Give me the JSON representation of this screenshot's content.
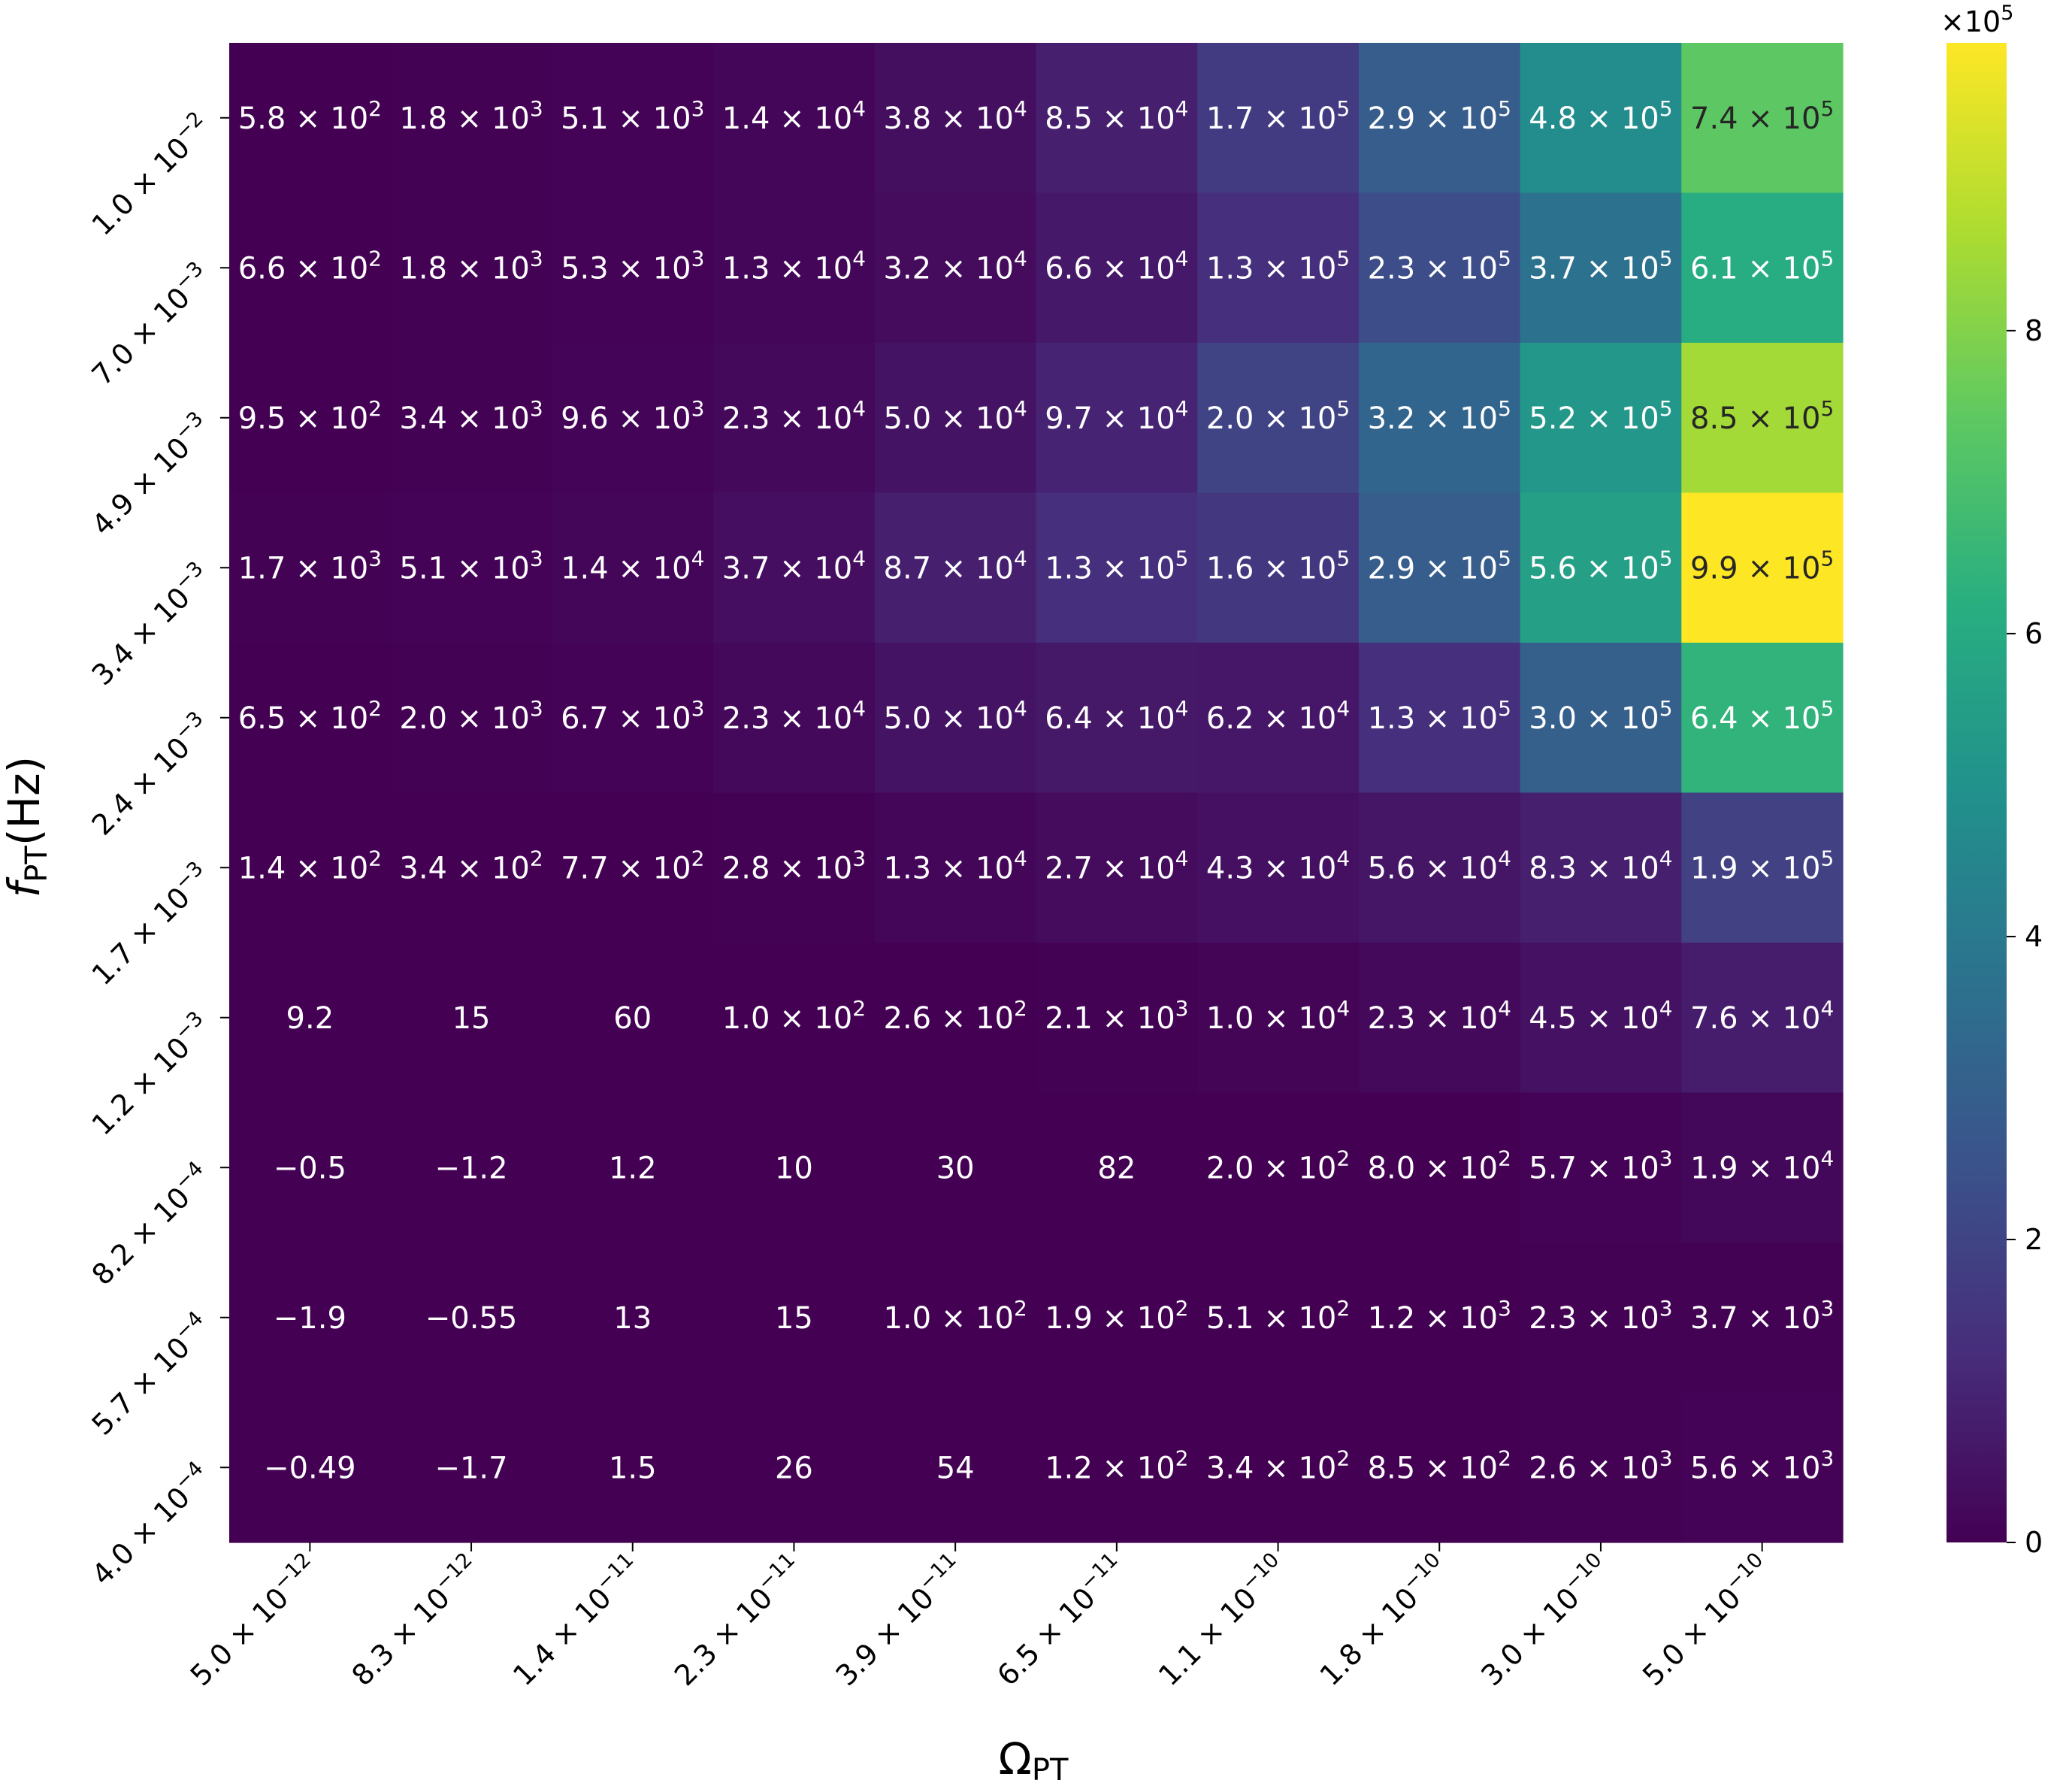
{
  "chart_data": {
    "type": "heatmap",
    "xlabel": "Ω",
    "xlabel_sub": "PT",
    "ylabel": "f",
    "ylabel_sub": "PT",
    "ylabel_suffix": "(Hz)",
    "x_ticks": [
      {
        "m": "5.0",
        "e": "−12"
      },
      {
        "m": "8.3",
        "e": "−12"
      },
      {
        "m": "1.4",
        "e": "−11"
      },
      {
        "m": "2.3",
        "e": "−11"
      },
      {
        "m": "3.9",
        "e": "−11"
      },
      {
        "m": "6.5",
        "e": "−11"
      },
      {
        "m": "1.1",
        "e": "−10"
      },
      {
        "m": "1.8",
        "e": "−10"
      },
      {
        "m": "3.0",
        "e": "−10"
      },
      {
        "m": "5.0",
        "e": "−10"
      }
    ],
    "y_ticks": [
      {
        "m": "1.0",
        "e": "−2"
      },
      {
        "m": "7.0",
        "e": "−3"
      },
      {
        "m": "4.9",
        "e": "−3"
      },
      {
        "m": "3.4",
        "e": "−3"
      },
      {
        "m": "2.4",
        "e": "−3"
      },
      {
        "m": "1.7",
        "e": "−3"
      },
      {
        "m": "1.2",
        "e": "−3"
      },
      {
        "m": "8.2",
        "e": "−4"
      },
      {
        "m": "5.7",
        "e": "−4"
      },
      {
        "m": "4.0",
        "e": "−4"
      }
    ],
    "values": [
      [
        580,
        1800,
        5100,
        14000,
        38000,
        85000,
        170000,
        290000,
        480000,
        740000
      ],
      [
        660,
        1800,
        5300,
        13000,
        32000,
        66000,
        130000,
        230000,
        370000,
        610000
      ],
      [
        950,
        3400,
        9600,
        23000,
        50000,
        97000,
        200000,
        320000,
        520000,
        850000
      ],
      [
        1700,
        5100,
        14000,
        37000,
        87000,
        130000,
        160000,
        290000,
        560000,
        990000
      ],
      [
        650,
        2000,
        6700,
        23000,
        50000,
        64000,
        62000,
        130000,
        300000,
        640000
      ],
      [
        140,
        340,
        770,
        2800,
        13000,
        27000,
        43000,
        56000,
        83000,
        190000
      ],
      [
        9.2,
        15,
        60,
        100,
        260,
        2100,
        10000,
        23000,
        45000,
        76000
      ],
      [
        -0.5,
        -1.2,
        1.2,
        10,
        30,
        82,
        200,
        800,
        5700,
        19000
      ],
      [
        -1.9,
        -0.55,
        13,
        15,
        100,
        190,
        510,
        1200,
        2300,
        3700
      ],
      [
        -0.49,
        -1.7,
        1.5,
        26,
        54,
        120,
        340,
        850,
        2600,
        5600
      ]
    ],
    "labels": [
      [
        {
          "m": "5.8",
          "e": "2"
        },
        {
          "m": "1.8",
          "e": "3"
        },
        {
          "m": "5.1",
          "e": "3"
        },
        {
          "m": "1.4",
          "e": "4"
        },
        {
          "m": "3.8",
          "e": "4"
        },
        {
          "m": "8.5",
          "e": "4"
        },
        {
          "m": "1.7",
          "e": "5"
        },
        {
          "m": "2.9",
          "e": "5"
        },
        {
          "m": "4.8",
          "e": "5"
        },
        {
          "m": "7.4",
          "e": "5"
        }
      ],
      [
        {
          "m": "6.6",
          "e": "2"
        },
        {
          "m": "1.8",
          "e": "3"
        },
        {
          "m": "5.3",
          "e": "3"
        },
        {
          "m": "1.3",
          "e": "4"
        },
        {
          "m": "3.2",
          "e": "4"
        },
        {
          "m": "6.6",
          "e": "4"
        },
        {
          "m": "1.3",
          "e": "5"
        },
        {
          "m": "2.3",
          "e": "5"
        },
        {
          "m": "3.7",
          "e": "5"
        },
        {
          "m": "6.1",
          "e": "5"
        }
      ],
      [
        {
          "m": "9.5",
          "e": "2"
        },
        {
          "m": "3.4",
          "e": "3"
        },
        {
          "m": "9.6",
          "e": "3"
        },
        {
          "m": "2.3",
          "e": "4"
        },
        {
          "m": "5.0",
          "e": "4"
        },
        {
          "m": "9.7",
          "e": "4"
        },
        {
          "m": "2.0",
          "e": "5"
        },
        {
          "m": "3.2",
          "e": "5"
        },
        {
          "m": "5.2",
          "e": "5"
        },
        {
          "m": "8.5",
          "e": "5"
        }
      ],
      [
        {
          "m": "1.7",
          "e": "3"
        },
        {
          "m": "5.1",
          "e": "3"
        },
        {
          "m": "1.4",
          "e": "4"
        },
        {
          "m": "3.7",
          "e": "4"
        },
        {
          "m": "8.7",
          "e": "4"
        },
        {
          "m": "1.3",
          "e": "5"
        },
        {
          "m": "1.6",
          "e": "5"
        },
        {
          "m": "2.9",
          "e": "5"
        },
        {
          "m": "5.6",
          "e": "5"
        },
        {
          "m": "9.9",
          "e": "5"
        }
      ],
      [
        {
          "m": "6.5",
          "e": "2"
        },
        {
          "m": "2.0",
          "e": "3"
        },
        {
          "m": "6.7",
          "e": "3"
        },
        {
          "m": "2.3",
          "e": "4"
        },
        {
          "m": "5.0",
          "e": "4"
        },
        {
          "m": "6.4",
          "e": "4"
        },
        {
          "m": "6.2",
          "e": "4"
        },
        {
          "m": "1.3",
          "e": "5"
        },
        {
          "m": "3.0",
          "e": "5"
        },
        {
          "m": "6.4",
          "e": "5"
        }
      ],
      [
        {
          "m": "1.4",
          "e": "2"
        },
        {
          "m": "3.4",
          "e": "2"
        },
        {
          "m": "7.7",
          "e": "2"
        },
        {
          "m": "2.8",
          "e": "3"
        },
        {
          "m": "1.3",
          "e": "4"
        },
        {
          "m": "2.7",
          "e": "4"
        },
        {
          "m": "4.3",
          "e": "4"
        },
        {
          "m": "5.6",
          "e": "4"
        },
        {
          "m": "8.3",
          "e": "4"
        },
        {
          "m": "1.9",
          "e": "5"
        }
      ],
      [
        {
          "m": "9.2"
        },
        {
          "m": "15"
        },
        {
          "m": "60"
        },
        {
          "m": "1.0",
          "e": "2"
        },
        {
          "m": "2.6",
          "e": "2"
        },
        {
          "m": "2.1",
          "e": "3"
        },
        {
          "m": "1.0",
          "e": "4"
        },
        {
          "m": "2.3",
          "e": "4"
        },
        {
          "m": "4.5",
          "e": "4"
        },
        {
          "m": "7.6",
          "e": "4"
        }
      ],
      [
        {
          "m": "−0.5"
        },
        {
          "m": "−1.2"
        },
        {
          "m": "1.2"
        },
        {
          "m": "10"
        },
        {
          "m": "30"
        },
        {
          "m": "82"
        },
        {
          "m": "2.0",
          "e": "2"
        },
        {
          "m": "8.0",
          "e": "2"
        },
        {
          "m": "5.7",
          "e": "3"
        },
        {
          "m": "1.9",
          "e": "4"
        }
      ],
      [
        {
          "m": "−1.9"
        },
        {
          "m": "−0.55"
        },
        {
          "m": "13"
        },
        {
          "m": "15"
        },
        {
          "m": "1.0",
          "e": "2"
        },
        {
          "m": "1.9",
          "e": "2"
        },
        {
          "m": "5.1",
          "e": "2"
        },
        {
          "m": "1.2",
          "e": "3"
        },
        {
          "m": "2.3",
          "e": "3"
        },
        {
          "m": "3.7",
          "e": "3"
        }
      ],
      [
        {
          "m": "−0.49"
        },
        {
          "m": "−1.7"
        },
        {
          "m": "1.5"
        },
        {
          "m": "26"
        },
        {
          "m": "54"
        },
        {
          "m": "1.2",
          "e": "2"
        },
        {
          "m": "3.4",
          "e": "2"
        },
        {
          "m": "8.5",
          "e": "2"
        },
        {
          "m": "2.6",
          "e": "3"
        },
        {
          "m": "5.6",
          "e": "3"
        }
      ]
    ],
    "colorbar": {
      "colormap": "viridis",
      "range": [
        0,
        990000
      ],
      "tick_values": [
        0,
        200000,
        400000,
        600000,
        800000
      ],
      "tick_labels": [
        "0",
        "2",
        "4",
        "6",
        "8"
      ],
      "multiplier": "×10",
      "multiplier_exp": "5"
    },
    "grid": false
  }
}
